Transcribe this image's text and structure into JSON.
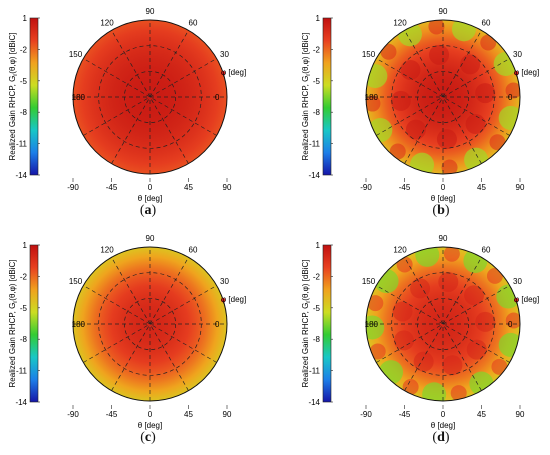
{
  "colorbar": {
    "label": "Realized Gain RHCP, G",
    "label_sub": "r",
    "label_args": "(θ,φ) [dBiC]",
    "ticks": [
      "1",
      "-2",
      "-5",
      "-8",
      "-11",
      "-14"
    ],
    "tick_values": [
      1,
      -2,
      -5,
      -8,
      -11,
      -14
    ],
    "range": [
      -14,
      1
    ],
    "colors": [
      "#1515a8",
      "#1d7fe8",
      "#18c7c6",
      "#33cc33",
      "#ccdd22",
      "#f0a21e",
      "#e84020",
      "#c01010"
    ]
  },
  "polar": {
    "phi_labels": [
      "0",
      "30",
      "60",
      "90",
      "120",
      "150",
      "180"
    ],
    "phi_values": [
      0,
      30,
      60,
      90,
      120,
      150,
      180
    ],
    "phi_axis_label": "φ [deg]",
    "theta_ticks": [
      "-90",
      "-45",
      "0",
      "45",
      "90"
    ],
    "theta_values": [
      -90,
      -45,
      0,
      45,
      90
    ],
    "theta_axis_label": "θ [deg]",
    "theta_range": [
      -90,
      90
    ],
    "grid": true
  },
  "chart_data": [
    {
      "type": "heatmap",
      "caption": "a",
      "gain_center_dBiC": 0.5,
      "gain_edge_dBiC": -1.5,
      "pattern": "smooth",
      "ripple_lobes": 0
    },
    {
      "type": "heatmap",
      "caption": "b",
      "gain_center_dBiC": 0.5,
      "gain_edge_dBiC": -4,
      "pattern": "rippled",
      "ripple_lobes": 8
    },
    {
      "type": "heatmap",
      "caption": "c",
      "gain_center_dBiC": 0,
      "gain_edge_dBiC": -4.5,
      "pattern": "smooth",
      "ripple_lobes": 0
    },
    {
      "type": "heatmap",
      "caption": "d",
      "gain_center_dBiC": 0,
      "gain_edge_dBiC": -4.5,
      "pattern": "rippled",
      "ripple_lobes": 9
    }
  ]
}
